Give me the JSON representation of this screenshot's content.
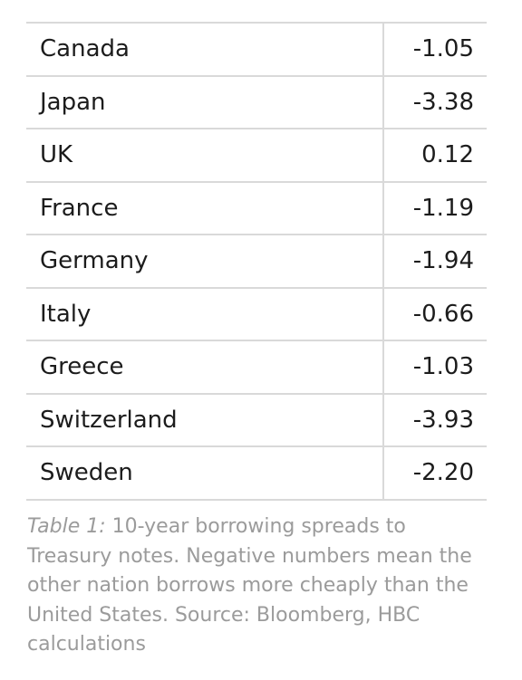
{
  "table": {
    "rows": [
      {
        "country": "Canada",
        "value": "-1.05"
      },
      {
        "country": "Japan",
        "value": "-3.38"
      },
      {
        "country": "UK",
        "value": "0.12"
      },
      {
        "country": "France",
        "value": "-1.19"
      },
      {
        "country": "Germany",
        "value": "-1.94"
      },
      {
        "country": "Italy",
        "value": "-0.66"
      },
      {
        "country": "Greece",
        "value": "-1.03"
      },
      {
        "country": "Switzerland",
        "value": "-3.93"
      },
      {
        "country": "Sweden",
        "value": "-2.20"
      }
    ]
  },
  "caption": {
    "label": "Table 1:",
    "text": " 10-year borrowing spreads to Treasury notes. Negative numbers mean the other nation borrows more cheaply than the United States. Source: Bloomberg, HBC calculations"
  }
}
